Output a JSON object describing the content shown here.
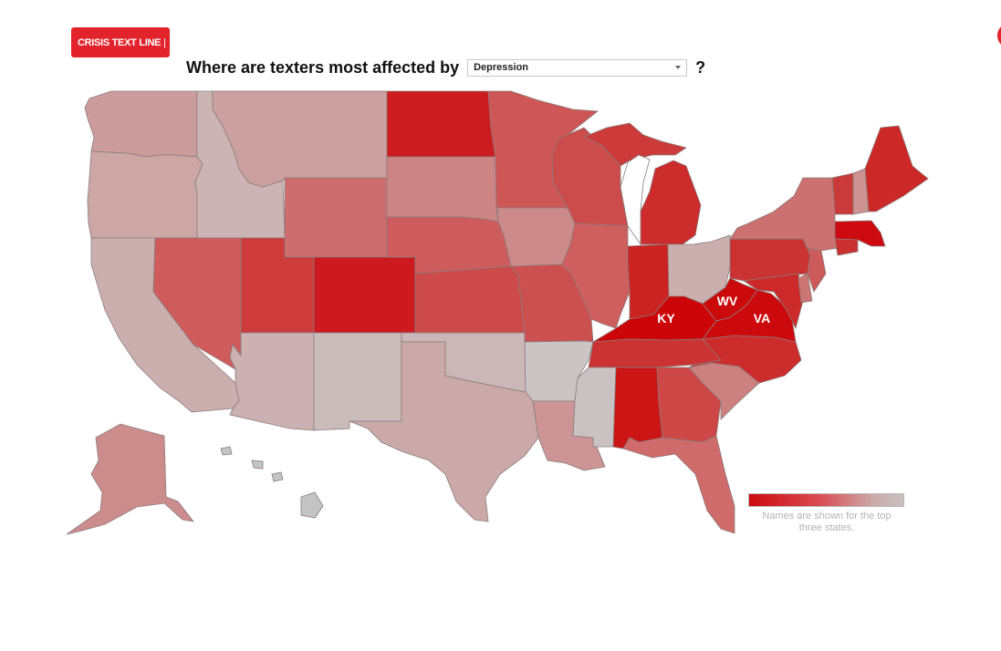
{
  "header": {
    "logo_text": "CRISIS TEXT LINE",
    "logo_caret": "|",
    "question_prefix": "Where are texters most affected by",
    "question_suffix": "?",
    "topic_select": {
      "selected": "Depression"
    }
  },
  "colors": {
    "brand": "#e3232c",
    "scale_high": "#cc0a10",
    "scale_low": "#c9c1c1"
  },
  "map": {
    "highlighted_labels": [
      "KY",
      "WV",
      "VA"
    ]
  },
  "legend": {
    "note": "Names are shown for the top three states."
  }
}
